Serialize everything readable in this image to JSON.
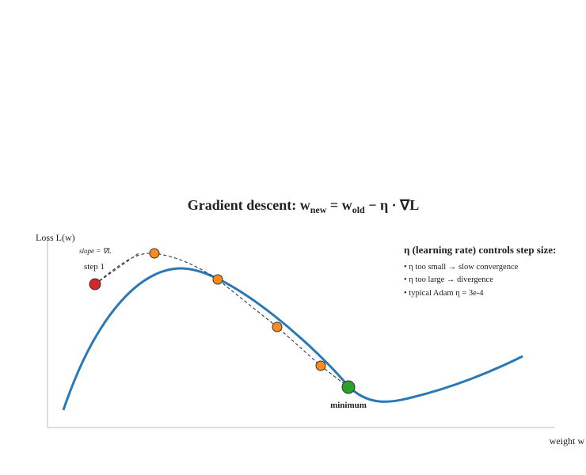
{
  "title": {
    "parts": [
      "Gradient descent: w",
      "new",
      " = w",
      "old",
      " − η · ∇L"
    ]
  },
  "axes": {
    "y_label": "Loss L(w)",
    "x_label": "weight w"
  },
  "annotations": {
    "slope": "slope = ∇L",
    "step": "step 1",
    "minimum": "minimum"
  },
  "notes": {
    "heading": "η (learning rate) controls step size:",
    "items": [
      "• η too small → slow convergence",
      "• η too large → divergence",
      "• typical Adam η = 3e-4"
    ]
  }
}
